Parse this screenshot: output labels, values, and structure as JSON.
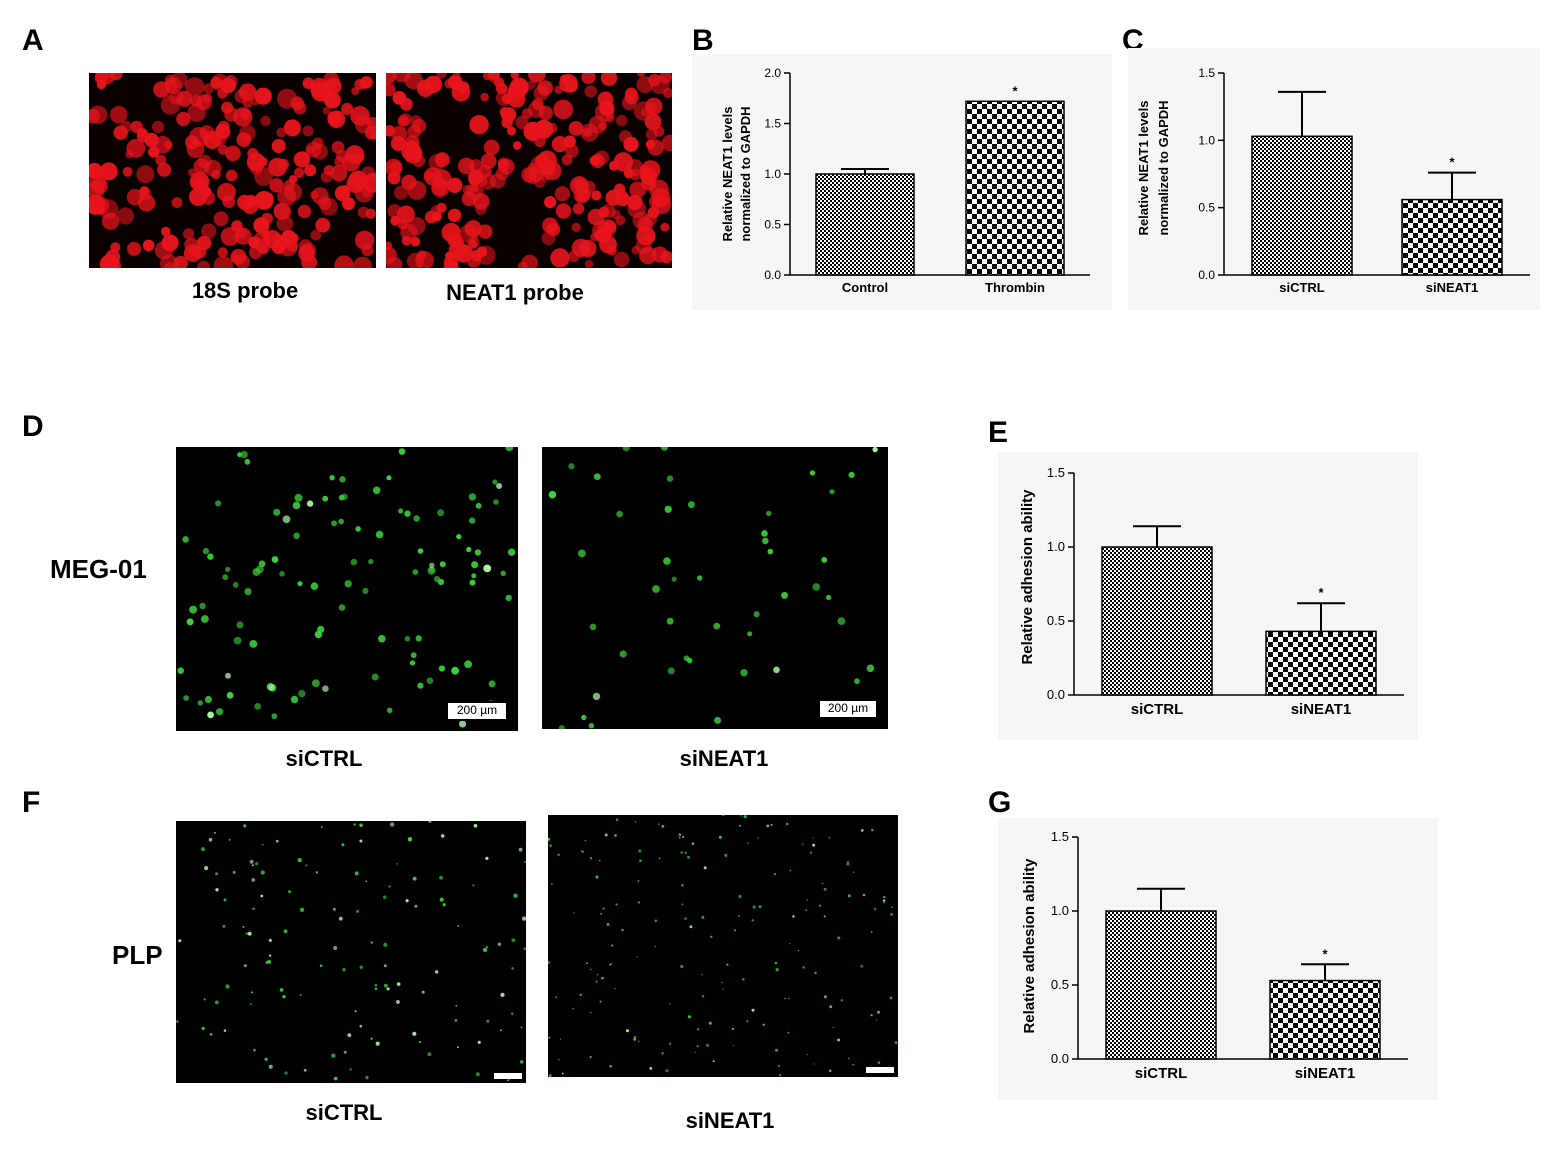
{
  "panels": {
    "A": {
      "letter": "A",
      "captions": [
        "18S probe",
        "NEAT1 probe"
      ]
    },
    "B": {
      "letter": "B"
    },
    "C": {
      "letter": "C"
    },
    "D": {
      "letter": "D",
      "row_label": "MEG-01",
      "captions": [
        "siCTRL",
        "siNEAT1"
      ],
      "scalebar": "200 µm"
    },
    "E": {
      "letter": "E"
    },
    "F": {
      "letter": "F",
      "row_label": "PLP",
      "captions": [
        "siCTRL",
        "siNEAT1"
      ]
    },
    "G": {
      "letter": "G"
    }
  },
  "colors": {
    "fluor_red": "#e8141c",
    "fluor_green": "#3cd23c",
    "fluor_green_pale": "#a8f0a0",
    "background": "#000000"
  },
  "chart_data": [
    {
      "id": "B",
      "type": "bar",
      "categories": [
        "Control",
        "Thrombin"
      ],
      "values": [
        1.0,
        1.72
      ],
      "errors": [
        0.05,
        0.0
      ],
      "significance": [
        "",
        "*"
      ],
      "ylabel_lines": [
        "Relative NEAT1 levels",
        "normalized to GAPDH"
      ],
      "ylim": [
        0,
        2.0
      ],
      "yticks": [
        "0.0",
        "0.5",
        "1.0",
        "1.5",
        "2.0"
      ],
      "ytick_values": [
        0,
        0.5,
        1.0,
        1.5,
        2.0
      ]
    },
    {
      "id": "C",
      "type": "bar",
      "categories": [
        "siCTRL",
        "siNEAT1"
      ],
      "values": [
        1.03,
        0.56
      ],
      "errors": [
        0.33,
        0.2
      ],
      "significance": [
        "",
        "*"
      ],
      "ylabel_lines": [
        "Relative NEAT1 levels",
        "normalized to GAPDH"
      ],
      "ylim": [
        0,
        1.5
      ],
      "yticks": [
        "0.0",
        "0.5",
        "1.0",
        "1.5"
      ],
      "ytick_values": [
        0,
        0.5,
        1.0,
        1.5
      ]
    },
    {
      "id": "E",
      "type": "bar",
      "categories": [
        "siCTRL",
        "siNEAT1"
      ],
      "values": [
        1.0,
        0.43
      ],
      "errors": [
        0.14,
        0.19
      ],
      "significance": [
        "",
        "*"
      ],
      "ylabel_lines": [
        "Relative  adhesion ability"
      ],
      "ylim": [
        0,
        1.5
      ],
      "yticks": [
        "0.0",
        "0.5",
        "1.0",
        "1.5"
      ],
      "ytick_values": [
        0,
        0.5,
        1.0,
        1.5
      ]
    },
    {
      "id": "G",
      "type": "bar",
      "categories": [
        "siCTRL",
        "siNEAT1"
      ],
      "values": [
        1.0,
        0.53
      ],
      "errors": [
        0.15,
        0.11
      ],
      "significance": [
        "",
        "*"
      ],
      "ylabel_lines": [
        "Relative  adhesion ability"
      ],
      "ylim": [
        0,
        1.5
      ],
      "yticks": [
        "0.0",
        "0.5",
        "1.0",
        "1.5"
      ],
      "ytick_values": [
        0,
        0.5,
        1.0,
        1.5
      ]
    }
  ]
}
